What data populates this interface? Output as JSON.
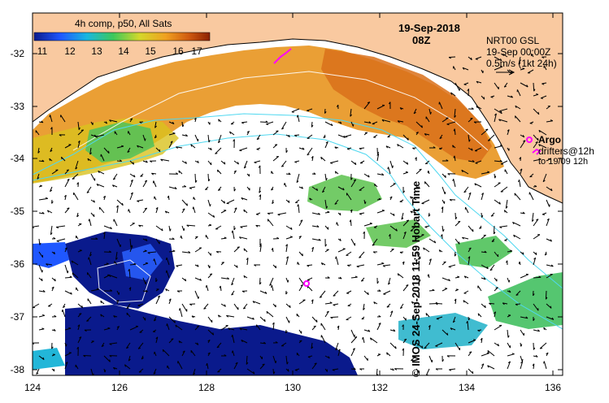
{
  "map": {
    "colorbar_title": "4h comp, p50, All Sats",
    "colorbar_ticks": [
      "11",
      "12",
      "13",
      "14",
      "15",
      "16",
      "17"
    ],
    "date": "19-Sep-2018",
    "time": "08Z",
    "product": "NRT00 GSL",
    "product_time": "19-Sep 00:00Z",
    "vector_scale": "0.5m/s (1kt 24h)",
    "argo_label": "Argo",
    "drifters_label": "drifters@12h",
    "drifters_range": "to 19/09 12h",
    "credit": "© IMOS 24-Sep-2018 11:59 Hobart Time",
    "lat_ticks": [
      "-32",
      "-33",
      "-34",
      "-35",
      "-36",
      "-37",
      "-38"
    ],
    "lon_ticks": [
      "124",
      "126",
      "128",
      "130",
      "132",
      "134",
      "136"
    ],
    "land_color": "#f9c9a0",
    "colorbar_colors": [
      "#0a1a8c",
      "#1f57ff",
      "#18b7e0",
      "#3cc85a",
      "#d4d82a",
      "#f0a020",
      "#d05a10",
      "#8c2000"
    ]
  }
}
